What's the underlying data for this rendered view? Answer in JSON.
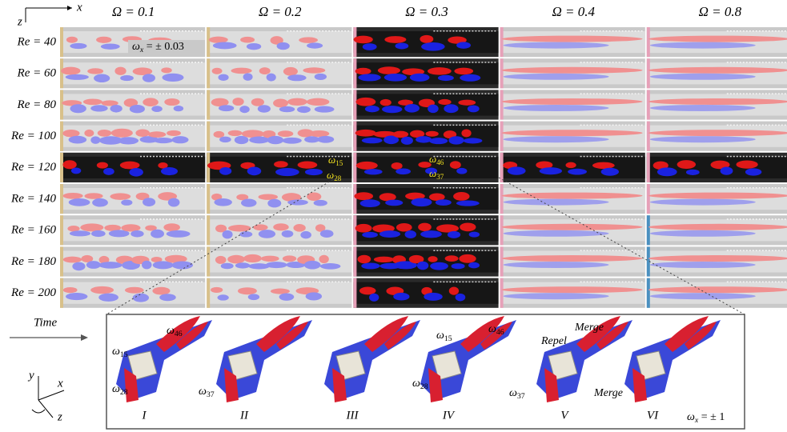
{
  "axes_top": {
    "vertical": "z",
    "horizontal": "x"
  },
  "column_headers": [
    "Ω = 0.1",
    "Ω = 0.2",
    "Ω = 0.3",
    "Ω = 0.4",
    "Ω = 0.8"
  ],
  "row_labels": [
    "Re = 40",
    "Re = 60",
    "Re = 80",
    "Re = 100",
    "Re = 120",
    "Re = 140",
    "Re = 160",
    "Re = 180",
    "Re = 200"
  ],
  "grid_annotation": {
    "symbol": "ω",
    "sub": "x",
    "rest": " = ± 0.03"
  },
  "cell_labels": [
    {
      "symbol": "ω",
      "sub": "15"
    },
    {
      "symbol": "ω",
      "sub": "28"
    },
    {
      "symbol": "ω",
      "sub": "46"
    },
    {
      "symbol": "ω",
      "sub": "37"
    }
  ],
  "time_label": "Time",
  "axes_bottom": {
    "y": "y",
    "x": "x",
    "z": "z"
  },
  "stages": [
    "I",
    "II",
    "III",
    "IV",
    "V",
    "VI"
  ],
  "panel_labels": [
    {
      "symbol": "ω",
      "sub": "46"
    },
    {
      "symbol": "ω",
      "sub": "15"
    },
    {
      "symbol": "ω",
      "sub": "28"
    },
    {
      "symbol": "ω",
      "sub": "37"
    },
    {
      "symbol": "ω",
      "sub": "15"
    },
    {
      "symbol": "ω",
      "sub": "46"
    },
    {
      "symbol": "ω",
      "sub": "28"
    },
    {
      "symbol": "ω",
      "sub": "37"
    }
  ],
  "event_labels": [
    "Merge",
    "Repel",
    "Merge"
  ],
  "panel_annotation": {
    "symbol": "ω",
    "sub": "x",
    "rest": " = ± 1"
  }
}
